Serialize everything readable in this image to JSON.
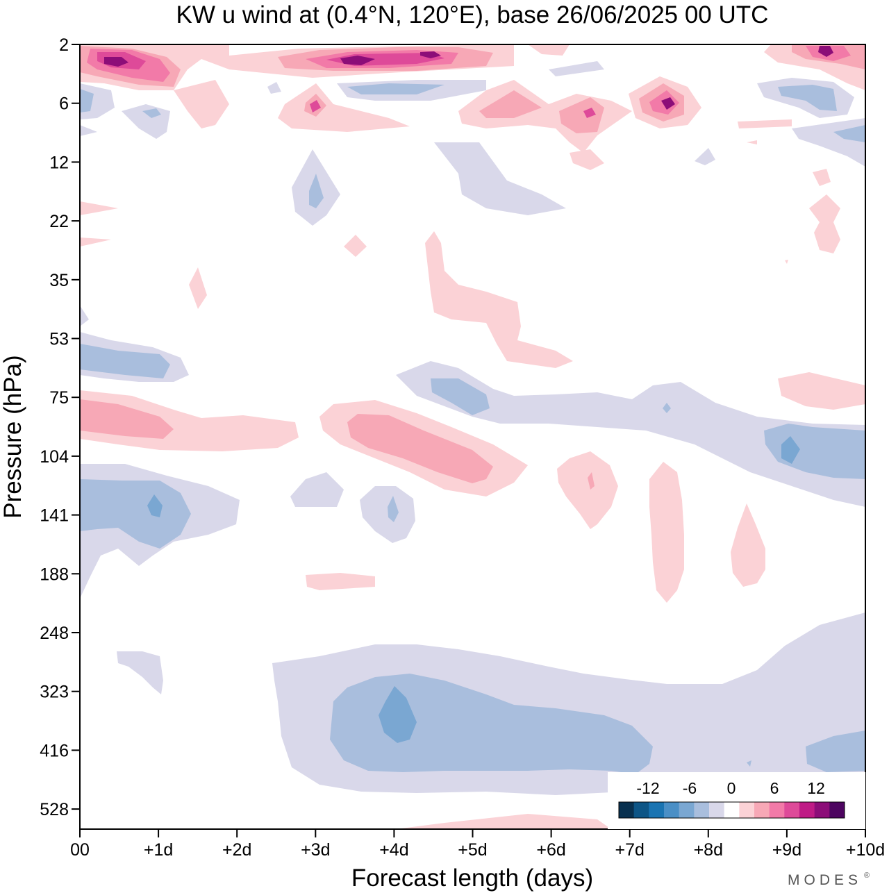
{
  "chart_data": {
    "type": "heatmap",
    "title": "KW u wind at (0.4°N, 120°E),  base 26/06/2025  00 UTC",
    "xlabel": "Forecast length (days)",
    "ylabel": "Pressure (hPa)",
    "x_ticks": [
      "00",
      "+1d",
      "+2d",
      "+3d",
      "+4d",
      "+5d",
      "+6d",
      "+7d",
      "+8d",
      "+9d",
      "+10d"
    ],
    "y_ticks": [
      "2",
      "6",
      "12",
      "22",
      "35",
      "53",
      "75",
      "104",
      "141",
      "188",
      "248",
      "323",
      "416",
      "528"
    ],
    "xlim_days": [
      0,
      10
    ],
    "grid": false,
    "legend": "bottom-right",
    "colorbar": {
      "labels": [
        "-12",
        "-6",
        "0",
        "6",
        "12"
      ],
      "colors": [
        "#08304f",
        "#0d5586",
        "#1a74b2",
        "#4a8fc6",
        "#7aa7d2",
        "#a9bedd",
        "#d9d8ea",
        "#ffffff",
        "#fbd2d6",
        "#f7a8b6",
        "#f27aa8",
        "#de4a99",
        "#bf1b86",
        "#8c0d78",
        "#4d0560"
      ]
    },
    "features": [
      {
        "name": "Upper positive maxima near 2-4 hPa",
        "sign": "positive",
        "days": [
          0,
          10
        ],
        "pressure_hPa": [
          2,
          4
        ],
        "peak": 14
      },
      {
        "name": "Negative band near 53-75 hPa",
        "sign": "negative",
        "days": [
          0,
          1.4
        ],
        "pressure_hPa": [
          50,
          65
        ],
        "peak": -5
      },
      {
        "name": "Positive band near 75-104 hPa",
        "sign": "positive",
        "days": [
          0,
          6.5
        ],
        "pressure_hPa": [
          78,
          115
        ],
        "peak": 7
      },
      {
        "name": "Negative band near 104-188 hPa",
        "sign": "negative",
        "days": [
          0,
          3
        ],
        "pressure_hPa": [
          110,
          190
        ],
        "peak": -6
      },
      {
        "name": "Negative region near 300-500 hPa",
        "sign": "negative",
        "days": [
          2.5,
          10
        ],
        "pressure_hPa": [
          280,
          500
        ],
        "peak": -6
      }
    ]
  },
  "logo": {
    "text": "MODES",
    "mark": "®"
  }
}
